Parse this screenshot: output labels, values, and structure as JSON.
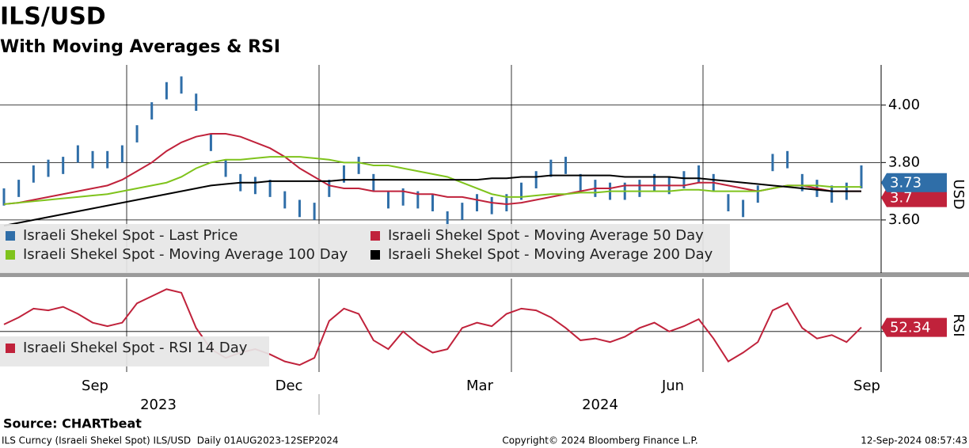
{
  "title": "ILS/USD",
  "subtitle": "With Moving Averages & RSI",
  "x_axis_labels": [
    "Sep",
    "Dec",
    "Mar",
    "Jun",
    "Sep"
  ],
  "year_labels": [
    "2023",
    "2024"
  ],
  "source": "Source: CHARTbeat",
  "footer": {
    "left": "ILS Curncy (Israeli Shekel Spot) ILS/USD  Daily 01AUG2023-12SEP2024",
    "center": "Copyright© 2024 Bloomberg Finance L.P.",
    "right": "12-Sep-2024 08:57:43"
  },
  "chart_data": [
    {
      "type": "hilo",
      "y_label": "USD",
      "ylim": [
        3.415,
        4.14
      ],
      "yticks": [
        {
          "value": 3.6,
          "label": "3.60"
        },
        {
          "value": 3.8,
          "label": "3.80"
        },
        {
          "value": 4,
          "label": "4.00"
        }
      ],
      "grid": true,
      "series": [
        {
          "name": "Israeli Shekel Spot - Last Price",
          "color": "#2f6ea8",
          "last_value": 3.73,
          "high": [
            3.71,
            3.74,
            3.79,
            3.81,
            3.82,
            3.86,
            3.84,
            3.84,
            3.86,
            3.93,
            4.01,
            4.08,
            4.1,
            4.04,
            3.9,
            3.81,
            3.76,
            3.75,
            3.74,
            3.7,
            3.67,
            3.66,
            3.74,
            3.79,
            3.82,
            3.76,
            3.7,
            3.71,
            3.7,
            3.69,
            3.63,
            3.66,
            3.69,
            3.68,
            3.69,
            3.73,
            3.77,
            3.81,
            3.82,
            3.76,
            3.74,
            3.73,
            3.73,
            3.74,
            3.76,
            3.75,
            3.77,
            3.79,
            3.76,
            3.69,
            3.67,
            3.72,
            3.83,
            3.84,
            3.76,
            3.74,
            3.72,
            3.73,
            3.79
          ],
          "low": [
            3.65,
            3.68,
            3.73,
            3.75,
            3.76,
            3.8,
            3.78,
            3.78,
            3.8,
            3.87,
            3.95,
            4.02,
            4.04,
            3.98,
            3.84,
            3.75,
            3.7,
            3.69,
            3.68,
            3.64,
            3.61,
            3.6,
            3.68,
            3.73,
            3.76,
            3.7,
            3.64,
            3.65,
            3.64,
            3.63,
            3.57,
            3.6,
            3.63,
            3.62,
            3.63,
            3.67,
            3.71,
            3.75,
            3.76,
            3.7,
            3.68,
            3.67,
            3.67,
            3.68,
            3.7,
            3.69,
            3.71,
            3.73,
            3.7,
            3.63,
            3.61,
            3.66,
            3.77,
            3.78,
            3.7,
            3.68,
            3.66,
            3.67,
            3.71
          ]
        },
        {
          "name": "Israeli Shekel Spot - Moving Average 50 Day",
          "color": "#c0223b",
          "last_value": 3.7,
          "values": [
            3.655,
            3.66,
            3.67,
            3.68,
            3.69,
            3.7,
            3.71,
            3.72,
            3.74,
            3.77,
            3.8,
            3.84,
            3.87,
            3.89,
            3.9,
            3.9,
            3.89,
            3.87,
            3.85,
            3.82,
            3.78,
            3.75,
            3.72,
            3.71,
            3.71,
            3.7,
            3.7,
            3.7,
            3.69,
            3.69,
            3.68,
            3.68,
            3.67,
            3.66,
            3.655,
            3.66,
            3.67,
            3.68,
            3.69,
            3.7,
            3.71,
            3.71,
            3.72,
            3.72,
            3.72,
            3.72,
            3.72,
            3.73,
            3.73,
            3.72,
            3.71,
            3.7,
            3.71,
            3.72,
            3.72,
            3.71,
            3.7,
            3.7,
            3.7
          ]
        },
        {
          "name": "Israeli Shekel Spot - Moving Average 100 Day",
          "color": "#7fc31c",
          "values": [
            3.655,
            3.66,
            3.665,
            3.67,
            3.675,
            3.68,
            3.685,
            3.69,
            3.7,
            3.71,
            3.72,
            3.73,
            3.75,
            3.78,
            3.8,
            3.81,
            3.81,
            3.815,
            3.82,
            3.82,
            3.82,
            3.815,
            3.81,
            3.8,
            3.8,
            3.79,
            3.79,
            3.78,
            3.77,
            3.76,
            3.75,
            3.73,
            3.71,
            3.69,
            3.68,
            3.68,
            3.685,
            3.69,
            3.69,
            3.695,
            3.695,
            3.7,
            3.7,
            3.7,
            3.7,
            3.7,
            3.705,
            3.705,
            3.7,
            3.7,
            3.7,
            3.7,
            3.71,
            3.72,
            3.72,
            3.72,
            3.715,
            3.715,
            3.715
          ]
        },
        {
          "name": "Israeli Shekel Spot - Moving Average 200 Day",
          "color": "#000000",
          "values": [
            3.58,
            3.59,
            3.6,
            3.61,
            3.62,
            3.63,
            3.64,
            3.65,
            3.66,
            3.67,
            3.68,
            3.69,
            3.7,
            3.71,
            3.72,
            3.725,
            3.73,
            3.73,
            3.735,
            3.735,
            3.735,
            3.735,
            3.735,
            3.74,
            3.74,
            3.74,
            3.74,
            3.74,
            3.74,
            3.74,
            3.74,
            3.74,
            3.74,
            3.745,
            3.745,
            3.75,
            3.75,
            3.755,
            3.755,
            3.755,
            3.755,
            3.755,
            3.75,
            3.75,
            3.75,
            3.75,
            3.745,
            3.745,
            3.74,
            3.735,
            3.73,
            3.725,
            3.72,
            3.715,
            3.71,
            3.705,
            3.7,
            3.7,
            3.7
          ]
        }
      ]
    },
    {
      "type": "line",
      "y_label": "RSI",
      "ylim": [
        27,
        80
      ],
      "yticks": [
        50
      ],
      "grid": true,
      "series": [
        {
          "name": "Israeli Shekel Spot - RSI 14 Day",
          "color": "#c0223b",
          "last_value": 52.34,
          "values": [
            54,
            58,
            63,
            62,
            64,
            60,
            55,
            53,
            55,
            66,
            70,
            74,
            72,
            52,
            40,
            35,
            38,
            40,
            37,
            33,
            31,
            35,
            56,
            63,
            60,
            45,
            40,
            50,
            43,
            38,
            40,
            52,
            55,
            53,
            60,
            63,
            62,
            58,
            52,
            45,
            46,
            44,
            47,
            52,
            55,
            50,
            53,
            57,
            46,
            33,
            38,
            44,
            62,
            66,
            52,
            46,
            48,
            44,
            52.34
          ]
        }
      ]
    }
  ]
}
